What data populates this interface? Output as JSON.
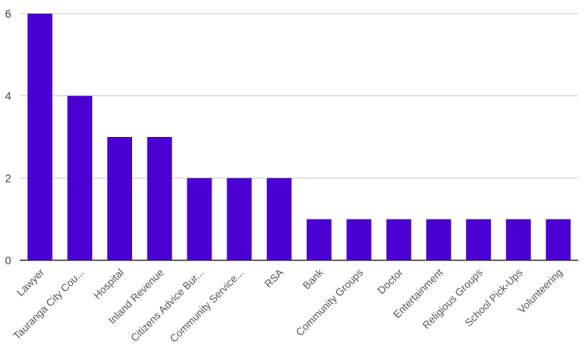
{
  "chart_data": {
    "type": "bar",
    "title": "",
    "xlabel": "",
    "ylabel": "",
    "categories": [
      "Lawyer",
      "Tauranga City Cou...",
      "Hospital",
      "Inland Revenue",
      "Citizens Advice Bur...",
      "Community Service...",
      "RSA",
      "Bank",
      "Community Groups",
      "Doctor",
      "Entertainment",
      "Religious Groups",
      "School Pick-Ups",
      "Volunteering"
    ],
    "values": [
      6,
      4,
      3,
      3,
      2,
      2,
      2,
      1,
      1,
      1,
      1,
      1,
      1,
      1
    ],
    "ylim": [
      0,
      6
    ],
    "yticks": [
      "0",
      "2",
      "4",
      "6"
    ],
    "grid": true,
    "legend": "none",
    "bar_color": "#4a00d1",
    "grid_color": "#cccccc",
    "axis_color": "#333333"
  }
}
